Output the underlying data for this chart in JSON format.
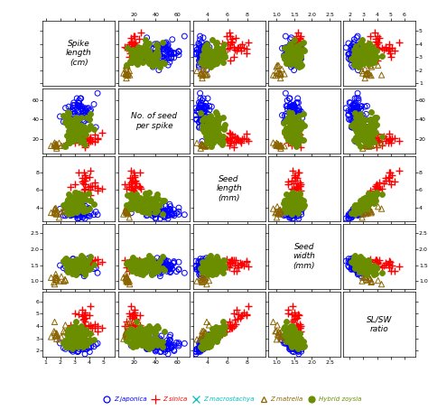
{
  "n_vars": 5,
  "diag_texts": [
    "Spike\nlength\n(cm)",
    "No. of seed\nper spike",
    "Seed\nlength\n(mm)",
    "Seed\nwidth\n(mm)",
    "SL/SW\nratio"
  ],
  "axis_ranges": [
    [
      0.8,
      5.8
    ],
    [
      5,
      72
    ],
    [
      2.5,
      9.8
    ],
    [
      0.75,
      2.8
    ],
    [
      1.5,
      6.8
    ]
  ],
  "axis_ticks": [
    [
      1,
      2,
      3,
      4,
      5
    ],
    [
      20,
      40,
      60
    ],
    [
      4,
      6,
      8
    ],
    [
      1.0,
      1.5,
      2.0,
      2.5
    ],
    [
      2,
      3,
      4,
      5,
      6
    ]
  ],
  "species_colors": [
    "blue",
    "red",
    "#00BFBF",
    "#8B6400",
    "#6B8E00"
  ],
  "species_markers": [
    "o",
    "+",
    "x",
    "^",
    "o"
  ],
  "species_mfc": [
    "none",
    "red",
    "none",
    "none",
    "#6B8E00"
  ],
  "species_msizes": [
    18,
    30,
    30,
    20,
    18
  ],
  "species_linewidths": [
    0.7,
    1.0,
    1.0,
    0.7,
    0.7
  ],
  "figsize": [
    4.74,
    4.54
  ],
  "dpi": 100
}
